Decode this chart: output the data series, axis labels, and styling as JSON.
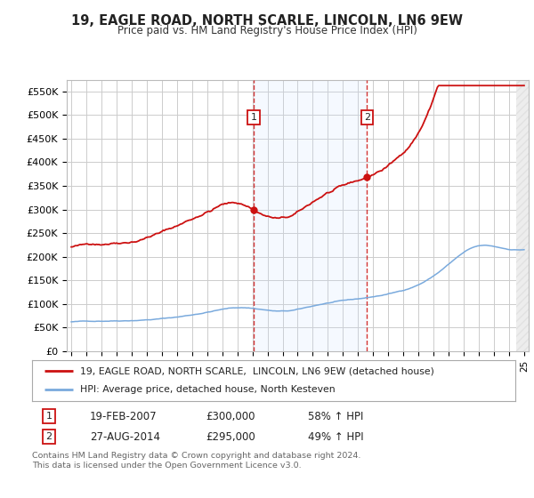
{
  "title": "19, EAGLE ROAD, NORTH SCARLE, LINCOLN, LN6 9EW",
  "subtitle": "Price paid vs. HM Land Registry's House Price Index (HPI)",
  "ylim": [
    0,
    575000
  ],
  "yticks": [
    0,
    50000,
    100000,
    150000,
    200000,
    250000,
    300000,
    350000,
    400000,
    450000,
    500000,
    550000
  ],
  "ytick_labels": [
    "£0",
    "£50K",
    "£100K",
    "£150K",
    "£200K",
    "£250K",
    "£300K",
    "£350K",
    "£400K",
    "£450K",
    "£500K",
    "£550K"
  ],
  "hpi_color": "#7aaadd",
  "sale_color": "#cc1111",
  "sale1_year": 2007.083,
  "sale2_year": 2014.583,
  "sale1": {
    "date": "19-FEB-2007",
    "price": 300000,
    "pct": "58%",
    "dir": "↑"
  },
  "sale2": {
    "date": "27-AUG-2014",
    "price": 295000,
    "pct": "49%",
    "dir": "↑"
  },
  "legend_line1": "19, EAGLE ROAD, NORTH SCARLE,  LINCOLN, LN6 9EW (detached house)",
  "legend_line2": "HPI: Average price, detached house, North Kesteven",
  "footnote": "Contains HM Land Registry data © Crown copyright and database right 2024.\nThis data is licensed under the Open Government Licence v3.0.",
  "background_color": "#ffffff",
  "grid_color": "#cccccc",
  "shade_color": "#ddeeff",
  "x_start_year": 1995,
  "x_end_year": 2025
}
